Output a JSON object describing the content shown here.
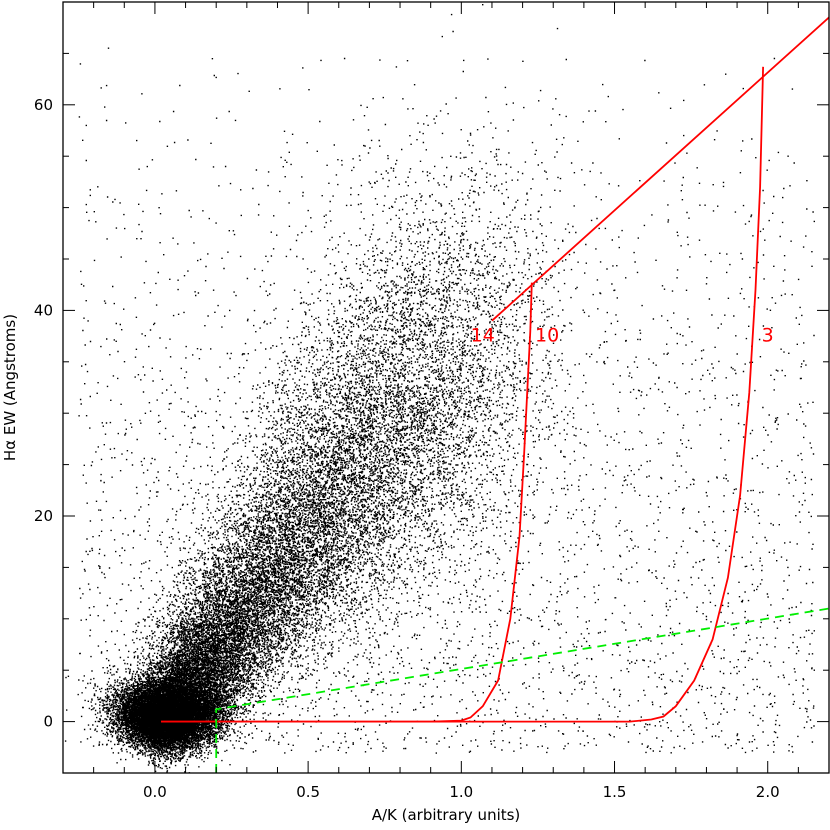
{
  "chart_data": {
    "type": "scatter",
    "title": "",
    "xlabel": "A/K (arbitrary units)",
    "ylabel": "Hα EW (Angstroms)",
    "xlim": [
      -0.3,
      2.2
    ],
    "ylim": [
      -5,
      70
    ],
    "x_ticks": [
      0.0,
      0.5,
      1.0,
      1.5,
      2.0
    ],
    "x_tick_labels": [
      "0.0",
      "0.5",
      "1.0",
      "1.5",
      "2.0"
    ],
    "y_ticks": [
      0,
      20,
      40,
      60
    ],
    "y_tick_labels": [
      "0",
      "20",
      "40",
      "60"
    ],
    "grid": false,
    "legend": "none",
    "scatter_cloud": {
      "description_values": "dense point cloud, densest near (0.05, 0); spreads toward larger A/K and Hα EW",
      "center": [
        0.05,
        0.0
      ],
      "color": "#000000"
    },
    "series": [
      {
        "type": "line",
        "style": "solid",
        "color": "#ff0000",
        "x": [
          1.1,
          2.2
        ],
        "y": [
          39.0,
          68.5
        ]
      },
      {
        "type": "line",
        "style": "solid",
        "color": "#ff0000",
        "x": [
          0.02,
          0.9,
          1.0,
          1.03,
          1.07,
          1.12,
          1.16,
          1.19,
          1.205,
          1.215,
          1.225,
          1.23
        ],
        "y": [
          0.0,
          0.0,
          0.1,
          0.4,
          1.5,
          4.0,
          10.0,
          18.0,
          26.0,
          32.0,
          38.0,
          42.7
        ]
      },
      {
        "type": "line",
        "style": "solid",
        "color": "#ff0000",
        "x": [
          0.02,
          1.55,
          1.62,
          1.66,
          1.7,
          1.76,
          1.82,
          1.87,
          1.91,
          1.94,
          1.96,
          1.975,
          1.985
        ],
        "y": [
          0.0,
          0.0,
          0.2,
          0.5,
          1.5,
          4.0,
          8.0,
          14.0,
          22.0,
          32.0,
          42.0,
          52.0,
          63.7
        ]
      },
      {
        "type": "line",
        "style": "dashed",
        "color": "#00ee00",
        "x": [
          0.2,
          0.2,
          2.2
        ],
        "y": [
          -5.0,
          1.2,
          11.0
        ]
      }
    ],
    "annotations": [
      {
        "text": "14",
        "x": 1.07,
        "y": 37.5,
        "color": "#ff0000"
      },
      {
        "text": "10",
        "x": 1.28,
        "y": 37.5,
        "color": "#ff0000"
      },
      {
        "text": "3",
        "x": 2.0,
        "y": 37.5,
        "color": "#ff0000"
      }
    ]
  }
}
